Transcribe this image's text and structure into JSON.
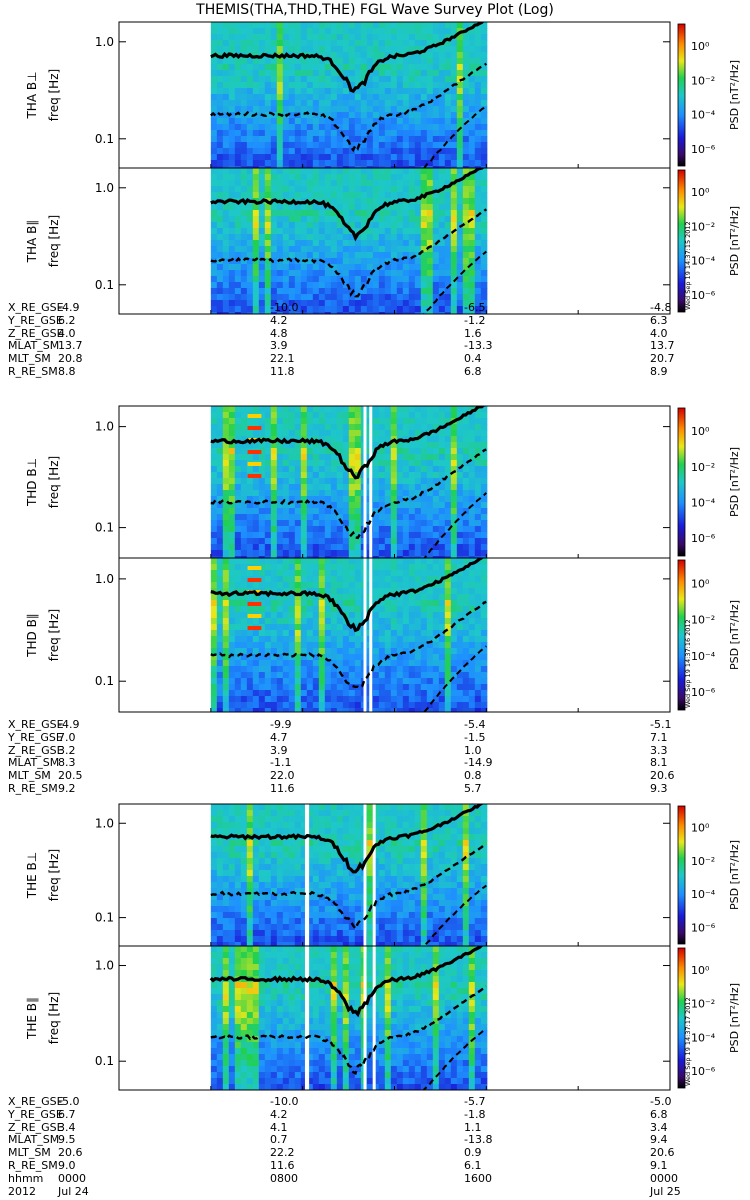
{
  "title": "THEMIS(THA,THD,THE) FGL Wave Survey Plot (Log)",
  "colorbar": {
    "label": "PSD [nT²/Hz]",
    "ticks": [
      "10⁰",
      "10⁻²",
      "10⁻⁴",
      "10⁻⁶"
    ],
    "tick_values": [
      1,
      0.01,
      0.0001,
      1e-06
    ],
    "log_range": [
      -7,
      1.3
    ]
  },
  "axis": {
    "ylabel": "freq [Hz]",
    "yticks": [
      "1.0",
      "0.1"
    ],
    "ytick_values": [
      1.0,
      0.1
    ],
    "ylim": [
      0.05,
      1.6
    ]
  },
  "stamps": [
    "Wed Sep 19 14:37:15 2012",
    "Wed Sep 19 14:37:16 2012",
    "Wed Sep 19 14:37:17 2012"
  ],
  "chart_data": [
    {
      "type": "heatmap",
      "probe": "THA",
      "component": "B⊥",
      "ylabel_probe": "THA B⊥",
      "data_x_range_hours": [
        4.0,
        16.0
      ],
      "gaps_hours": [],
      "burst_hours": [],
      "lines": "fce-fraction curves: solid, dashed, dashed"
    },
    {
      "type": "heatmap",
      "probe": "THA",
      "component": "B∥",
      "ylabel_probe": "THA B∥",
      "data_x_range_hours": [
        4.0,
        16.0
      ],
      "gaps_hours": [],
      "burst_hours": [],
      "lines": "fce-fraction curves: solid, dashed, dashed"
    },
    {
      "type": "heatmap",
      "probe": "THD",
      "component": "B⊥",
      "ylabel_probe": "THD B⊥",
      "data_x_range_hours": [
        4.0,
        16.0
      ],
      "gaps_hours": [
        [
          10.65,
          10.75
        ],
        [
          10.9,
          10.98
        ]
      ],
      "burst_hours": [
        [
          5.6,
          6.2
        ]
      ],
      "lines": "fce-fraction curves: solid, dashed, dashed"
    },
    {
      "type": "heatmap",
      "probe": "THD",
      "component": "B∥",
      "ylabel_probe": "THD B∥",
      "data_x_range_hours": [
        4.0,
        16.0
      ],
      "gaps_hours": [
        [
          10.65,
          10.75
        ],
        [
          10.9,
          10.98
        ]
      ],
      "burst_hours": [
        [
          5.6,
          6.2
        ]
      ],
      "lines": "fce-fraction curves: solid, dashed, dashed"
    },
    {
      "type": "heatmap",
      "probe": "THE",
      "component": "B⊥",
      "ylabel_probe": "THE B⊥",
      "data_x_range_hours": [
        4.0,
        16.0
      ],
      "gaps_hours": [
        [
          8.1,
          8.28
        ],
        [
          10.65,
          10.75
        ],
        [
          11.05,
          11.15
        ]
      ],
      "burst_hours": [],
      "lines": "fce-fraction curves: solid, dashed, dashed"
    },
    {
      "type": "heatmap",
      "probe": "THE",
      "component": "B∥",
      "ylabel_probe": "THE B∥",
      "data_x_range_hours": [
        4.0,
        16.0
      ],
      "gaps_hours": [
        [
          8.1,
          8.28
        ],
        [
          10.65,
          10.75
        ],
        [
          11.05,
          11.15
        ]
      ],
      "burst_hours": [],
      "lines": "fce-fraction curves: solid, dashed, dashed"
    }
  ],
  "ephemeris": [
    {
      "rows": [
        {
          "label": "X_RE_GSE",
          "values": [
            "-4.9",
            "-10.0",
            "-6.5",
            "-4.8"
          ]
        },
        {
          "label": "Y_RE_GSE",
          "values": [
            "6.2",
            "4.2",
            "-1.2",
            "6.3"
          ]
        },
        {
          "label": "Z_RE_GSE",
          "values": [
            "4.0",
            "4.8",
            "1.6",
            "4.0"
          ]
        },
        {
          "label": "MLAT_SM",
          "values": [
            "13.7",
            "3.9",
            "-13.3",
            "13.7"
          ]
        },
        {
          "label": "MLT_SM",
          "values": [
            "20.8",
            "22.1",
            "0.4",
            "20.7"
          ]
        },
        {
          "label": "R_RE_SM",
          "values": [
            "8.8",
            "11.8",
            "6.8",
            "8.9"
          ]
        }
      ]
    },
    {
      "rows": [
        {
          "label": "X_RE_GSE",
          "values": [
            "-4.9",
            "-9.9",
            "-5.4",
            "-5.1"
          ]
        },
        {
          "label": "Y_RE_GSE",
          "values": [
            "7.0",
            "4.7",
            "-1.5",
            "7.1"
          ]
        },
        {
          "label": "Z_RE_GSE",
          "values": [
            "3.2",
            "3.9",
            "1.0",
            "3.3"
          ]
        },
        {
          "label": "MLAT_SM",
          "values": [
            "8.3",
            "-1.1",
            "-14.9",
            "8.1"
          ]
        },
        {
          "label": "MLT_SM",
          "values": [
            "20.5",
            "22.0",
            "0.8",
            "20.6"
          ]
        },
        {
          "label": "R_RE_SM",
          "values": [
            "9.2",
            "11.6",
            "5.7",
            "9.3"
          ]
        }
      ]
    },
    {
      "rows": [
        {
          "label": "X_RE_GSE",
          "values": [
            "-5.0",
            "-10.0",
            "-5.7",
            "-5.0"
          ]
        },
        {
          "label": "Y_RE_GSE",
          "values": [
            "6.7",
            "4.2",
            "-1.8",
            "6.8"
          ]
        },
        {
          "label": "Z_RE_GSE",
          "values": [
            "3.4",
            "4.1",
            "1.1",
            "3.4"
          ]
        },
        {
          "label": "MLAT_SM",
          "values": [
            "9.5",
            "0.7",
            "-13.8",
            "9.4"
          ]
        },
        {
          "label": "MLT_SM",
          "values": [
            "20.6",
            "22.2",
            "0.9",
            "20.6"
          ]
        },
        {
          "label": "R_RE_SM",
          "values": [
            "9.0",
            "11.6",
            "6.1",
            "9.1"
          ]
        },
        {
          "label": "hhmm",
          "values": [
            "0000",
            "0800",
            "1600",
            "0000"
          ]
        },
        {
          "label": "2012",
          "values": [
            "Jul 24",
            "",
            "",
            "Jul 25"
          ]
        }
      ]
    }
  ]
}
